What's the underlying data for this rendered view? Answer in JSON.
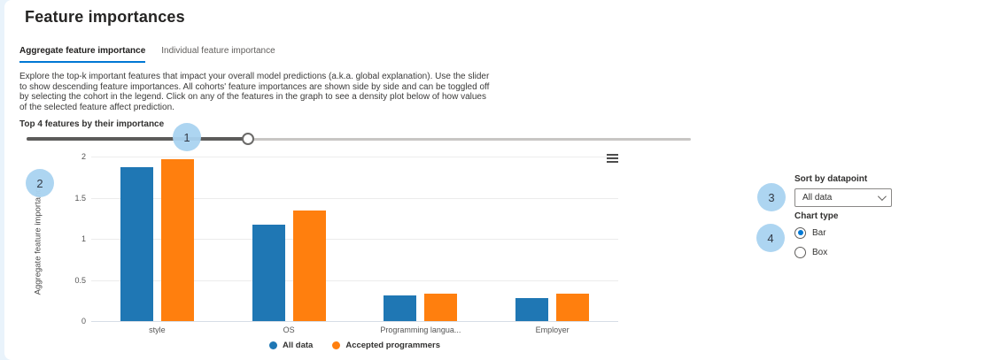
{
  "header": {
    "title": "Feature importances"
  },
  "tabs": [
    {
      "label": "Aggregate feature importance",
      "active": true
    },
    {
      "label": "Individual feature importance",
      "active": false
    }
  ],
  "description": {
    "lines": [
      "Explore the top-k important features that impact your overall model predictions (a.k.a. global explanation). Use the slider",
      "to show descending feature importances. All cohorts' feature importances are shown side by side and can be toggled off",
      "by selecting the cohort in the legend. Click on any of the features in the graph to see a density plot below of how values",
      "of the selected feature affect prediction."
    ]
  },
  "slider": {
    "label": "Top 4 features by their importance"
  },
  "chart_data": {
    "type": "bar",
    "categories": [
      "style",
      "OS",
      "Programming langua...",
      "Employer"
    ],
    "series": [
      {
        "name": "All data",
        "color": "#1f77b4",
        "values": [
          1.87,
          1.17,
          0.31,
          0.28
        ]
      },
      {
        "name": "Accepted programmers",
        "color": "#ff7f0e",
        "values": [
          1.97,
          1.34,
          0.33,
          0.33
        ]
      }
    ],
    "title": "",
    "xlabel": "",
    "ylabel": "Aggregate feature importance",
    "ylim": [
      0,
      2
    ],
    "yticks": [
      0,
      0.5,
      1,
      1.5,
      2
    ],
    "grid": true,
    "legend_position": "bottom"
  },
  "right_panel": {
    "sort_label": "Sort by datapoint",
    "sort_value": "All data",
    "chart_type_label": "Chart type",
    "chart_type_options": [
      {
        "label": "Bar",
        "selected": true
      },
      {
        "label": "Box",
        "selected": false
      }
    ]
  },
  "annotations": {
    "badges": [
      "1",
      "2",
      "3",
      "4"
    ]
  },
  "colors": {
    "accent": "#0078d4",
    "badge_bg": "#a9d3f0",
    "series_blue": "#1f77b4",
    "series_orange": "#ff7f0e"
  }
}
